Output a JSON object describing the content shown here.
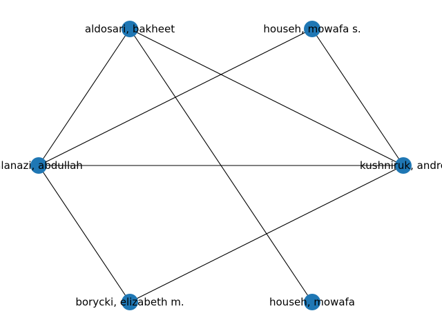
{
  "graph": {
    "node_color": "#1f77b4",
    "edge_color": "#000000",
    "nodes": [
      {
        "id": "aldosari",
        "label": "aldosari, bakheet"
      },
      {
        "id": "househ_s",
        "label": "househ, mowafa s."
      },
      {
        "id": "alanazi",
        "label": "alanazi, abdullah"
      },
      {
        "id": "kushniruk",
        "label": "kushniruk, andre"
      },
      {
        "id": "borycki",
        "label": "borycki, elizabeth m."
      },
      {
        "id": "househ",
        "label": "househ, mowafa"
      }
    ],
    "edges": [
      [
        "aldosari",
        "alanazi"
      ],
      [
        "aldosari",
        "kushniruk"
      ],
      [
        "aldosari",
        "househ"
      ],
      [
        "househ_s",
        "alanazi"
      ],
      [
        "househ_s",
        "kushniruk"
      ],
      [
        "alanazi",
        "kushniruk"
      ],
      [
        "alanazi",
        "borycki"
      ],
      [
        "kushniruk",
        "borycki"
      ]
    ]
  }
}
